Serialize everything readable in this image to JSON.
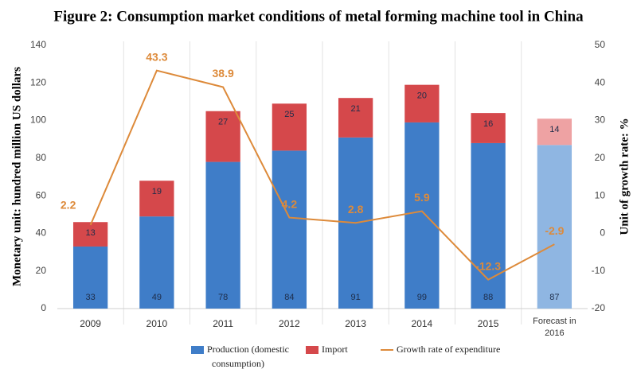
{
  "chart_data": {
    "type": "bar",
    "title": "Figure 2: Consumption market conditions of metal forming machine tool in China",
    "y_label": "Monetary unit: hundred million US dollars",
    "y2_label": "Unit of growth rate: %",
    "categories": [
      "2009",
      "2010",
      "2011",
      "2012",
      "2013",
      "2014",
      "2015",
      "Forecast in 2016"
    ],
    "series": [
      {
        "name": "Production (domestic consumption)",
        "type": "bar",
        "color": "#3f7dc8",
        "colors": [
          "#3f7dc8",
          "#3f7dc8",
          "#3f7dc8",
          "#3f7dc8",
          "#3f7dc8",
          "#3f7dc8",
          "#3f7dc8",
          "#8fb6e2"
        ],
        "values": [
          33,
          49,
          78,
          84,
          91,
          99,
          88,
          87
        ]
      },
      {
        "name": "Import",
        "type": "bar",
        "color": "#d5484b",
        "colors": [
          "#d5484b",
          "#d5484b",
          "#d5484b",
          "#d5484b",
          "#d5484b",
          "#d5484b",
          "#d5484b",
          "#eea2a3"
        ],
        "values": [
          13,
          19,
          27,
          25,
          21,
          20,
          16,
          14
        ]
      },
      {
        "name": "Growth rate of expenditure",
        "type": "line",
        "axis": "y2",
        "color": "#dd8a3a",
        "values": [
          2.2,
          43.3,
          38.9,
          4.2,
          2.8,
          5.9,
          -12.3,
          -2.9
        ]
      }
    ],
    "ylim": [
      0,
      140
    ],
    "yticks": [
      0,
      20,
      40,
      60,
      80,
      100,
      120,
      140
    ],
    "y2lim": [
      -20,
      50
    ],
    "y2ticks": [
      -20,
      -10,
      0,
      10,
      20,
      30,
      40,
      50
    ],
    "grid": false
  }
}
